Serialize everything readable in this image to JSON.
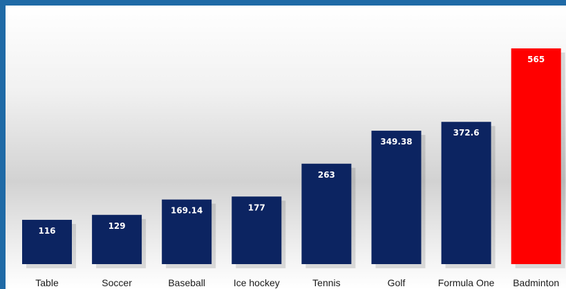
{
  "chart_data": {
    "type": "bar",
    "categories": [
      "Table",
      "Soccer",
      "Baseball",
      "Ice hockey",
      "Tennis",
      "Golf",
      "Formula One",
      "Badminton"
    ],
    "values": [
      116,
      129,
      169.14,
      177,
      263,
      349.38,
      372.6,
      565
    ],
    "value_labels": [
      "116",
      "129",
      "169.14",
      "177",
      "263",
      "349.38",
      "372.6",
      "565"
    ],
    "highlight_index": 7,
    "ylim": [
      0,
      565
    ],
    "grid": false,
    "colors": {
      "bar": "#0c2461",
      "highlight": "#ff0000",
      "label": "#1a1a1a",
      "highlight_label": "#e00000",
      "value_text": "#ffffff"
    }
  }
}
